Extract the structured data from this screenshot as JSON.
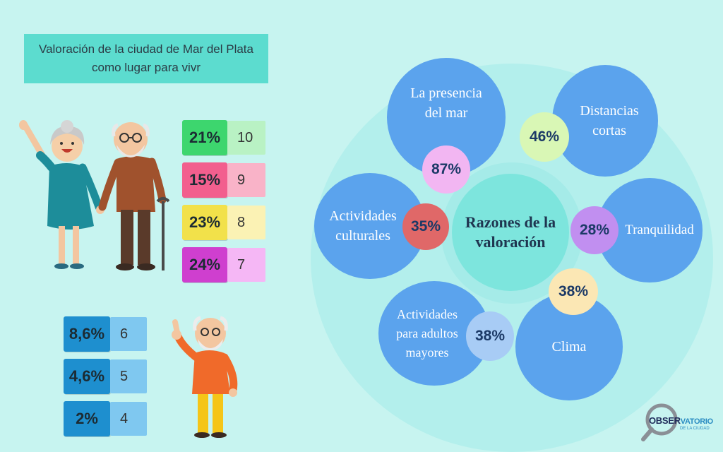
{
  "title": "Valoración de la ciudad de Mar del Plata como lugar para vivr",
  "scores_top": [
    {
      "pct": "21%",
      "score": "10",
      "color": "#3dd66e",
      "light": "#b9f2c4"
    },
    {
      "pct": "15%",
      "score": "9",
      "color": "#f25f8e",
      "light": "#f9b3c8"
    },
    {
      "pct": "23%",
      "score": "8",
      "color": "#f2e14a",
      "light": "#fbf2b4"
    },
    {
      "pct": "24%",
      "score": "7",
      "color": "#cf3fcf",
      "light": "#f5b7f5"
    }
  ],
  "scores_bottom": [
    {
      "pct": "8,6%",
      "score": "6",
      "color": "#1e8fcf",
      "light": "#7fc8f0"
    },
    {
      "pct": "4,6%",
      "score": "5",
      "color": "#1e8fcf",
      "light": "#7fc8f0"
    },
    {
      "pct": "2%",
      "score": "4",
      "color": "#1e8fcf",
      "light": "#7fc8f0"
    }
  ],
  "reasons": {
    "center_label": "Razones de la valoración",
    "items": [
      {
        "label": "La presencia del mar",
        "pct": "87%",
        "badge_color": "#f2b6f2"
      },
      {
        "label": "Distancias cortas",
        "pct": "46%",
        "badge_color": "#d9f7b5"
      },
      {
        "label": "Tranquilidad",
        "pct": "28%",
        "badge_color": "#c18ff0"
      },
      {
        "label": "Clima",
        "pct": "38%",
        "badge_color": "#fbe7b4"
      },
      {
        "label": "Actividades para adultos mayores",
        "pct": "38%",
        "badge_color": "#a8ccf5"
      },
      {
        "label": "Actividades culturales",
        "pct": "35%",
        "badge_color": "#e06868"
      }
    ]
  },
  "logo": {
    "text_left": "OBSER",
    "text_right": "VATORIO",
    "sub": "DE LA CIUDAD"
  }
}
